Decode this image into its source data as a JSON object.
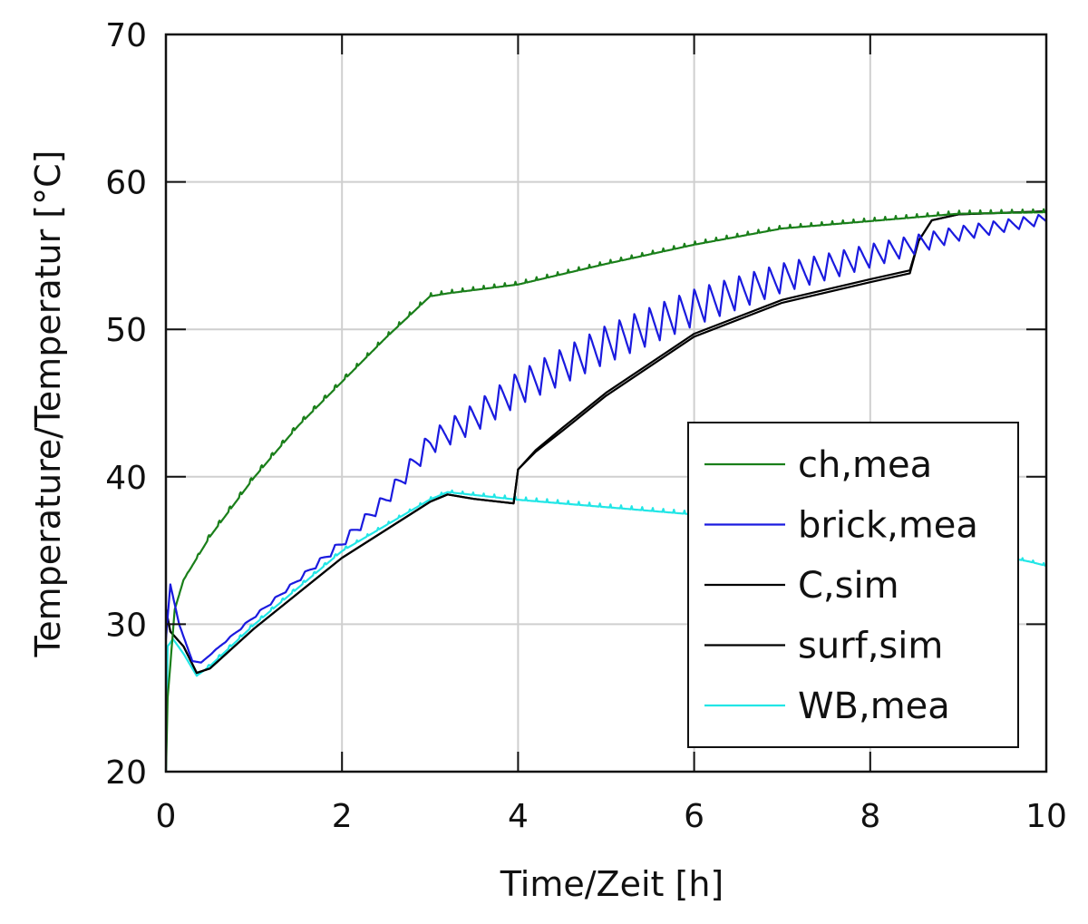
{
  "chart_data": {
    "type": "line",
    "xlabel": "Time/Zeit [h]",
    "ylabel": "Temperature/Temperatur [°C]",
    "xlim": [
      0,
      10
    ],
    "ylim": [
      20,
      70
    ],
    "xticks": [
      0,
      2,
      4,
      6,
      8,
      10
    ],
    "yticks": [
      20,
      30,
      40,
      50,
      60,
      70
    ],
    "grid": true,
    "legend_position": "bottom-right",
    "series": [
      {
        "name": "ch,mea",
        "color": "#1a7f1a",
        "x": [
          0,
          0.02,
          0.1,
          0.2,
          0.5,
          1,
          1.5,
          2,
          2.5,
          3,
          3.2,
          4,
          5,
          6,
          7,
          8,
          9,
          10
        ],
        "y": [
          20,
          25,
          31,
          33,
          36,
          40,
          43.5,
          46.5,
          49.5,
          52.3,
          52.5,
          53.1,
          54.5,
          55.8,
          56.9,
          57.4,
          57.9,
          58
        ],
        "ripple": [
          0,
          0,
          0,
          0,
          0.3,
          0.3,
          0.3,
          0.3,
          0.3,
          0.3,
          0.3,
          0.3,
          0.3,
          0.3,
          0.3,
          0.3,
          0.3,
          0.3
        ]
      },
      {
        "name": "brick,mea",
        "color": "#1a1adf",
        "x": [
          0,
          0.05,
          0.15,
          0.3,
          0.4,
          1,
          1.5,
          2,
          2.5,
          3,
          3.5,
          4,
          5,
          6,
          7,
          8,
          9,
          10
        ],
        "y": [
          29,
          32.7,
          30,
          27.5,
          27.4,
          30.5,
          33,
          35.5,
          38.5,
          42.3,
          44,
          46,
          49,
          51.5,
          53.5,
          55,
          56.5,
          57.5
        ],
        "ripple": [
          0,
          0,
          0,
          0,
          0,
          0.2,
          0.3,
          0.6,
          1,
          1.6,
          2,
          2.3,
          2.6,
          2.5,
          2,
          1.6,
          1,
          0.7
        ]
      },
      {
        "name": "C,sim",
        "color": "#000000",
        "x": [
          0,
          0.05,
          0.2,
          0.35,
          0.5,
          1,
          2,
          3,
          3.2,
          3.5,
          3.95,
          4,
          4.2,
          4.5,
          5,
          6,
          7,
          8,
          8.45,
          8.55,
          8.7,
          9,
          10
        ],
        "y": [
          31,
          29.5,
          28.5,
          26.7,
          27,
          29.7,
          34.5,
          38.3,
          38.8,
          38.5,
          38.2,
          40.5,
          41.8,
          43.3,
          45.7,
          49.7,
          52,
          53.4,
          54,
          56,
          57.4,
          57.8,
          58
        ]
      },
      {
        "name": "surf,sim",
        "color": "#000000",
        "x": [
          0,
          0.05,
          0.2,
          0.35,
          0.5,
          1,
          2,
          3,
          3.2,
          3.5,
          3.95,
          4,
          4.2,
          4.5,
          5,
          6,
          7,
          8,
          8.45,
          8.55,
          8.7,
          9,
          10
        ],
        "y": [
          31,
          29.5,
          28.5,
          26.7,
          27,
          29.7,
          34.5,
          38.3,
          38.8,
          38.5,
          38.2,
          40.5,
          41.7,
          43.1,
          45.5,
          49.5,
          51.8,
          53.2,
          53.8,
          56,
          57.4,
          57.8,
          58
        ]
      },
      {
        "name": "WB,mea",
        "color": "#22e6e6",
        "x": [
          0,
          0.02,
          0.08,
          0.2,
          0.35,
          0.5,
          1,
          2,
          3,
          3.2,
          4,
          5,
          6,
          7,
          8,
          9,
          9.8,
          10
        ],
        "y": [
          20,
          28.5,
          29,
          28,
          26.5,
          27.2,
          30,
          35,
          38.5,
          39,
          38.5,
          38,
          37.5,
          36.8,
          36,
          35.2,
          34.3,
          34
        ],
        "ripple": [
          0,
          0,
          0,
          0,
          0,
          0.2,
          0.2,
          0.2,
          0.2,
          0.2,
          0.3,
          0.3,
          0.3,
          0.3,
          0.3,
          0.3,
          0.2,
          0.2
        ]
      }
    ]
  }
}
